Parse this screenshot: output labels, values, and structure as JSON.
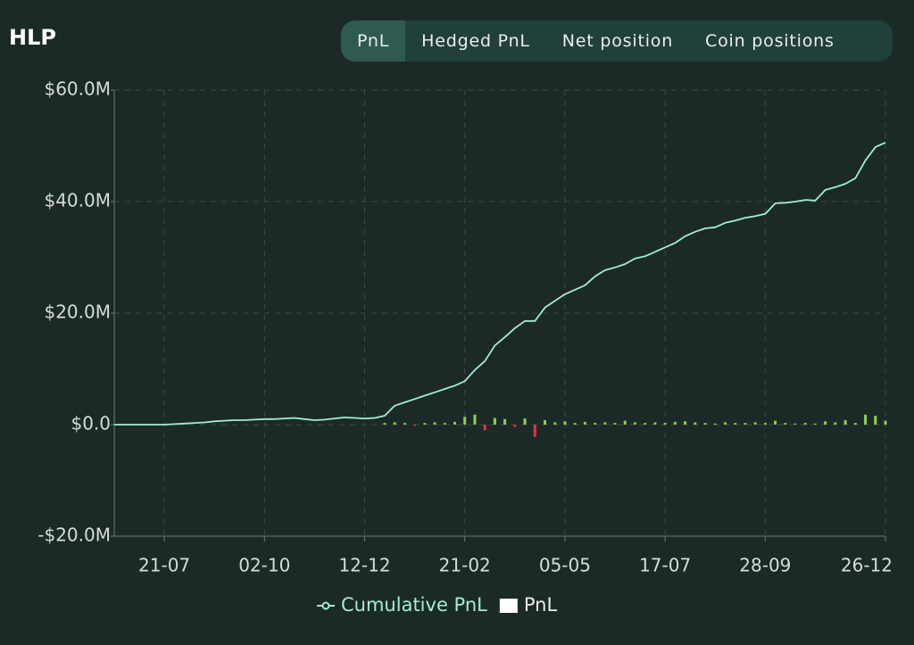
{
  "tabs": [
    "PnL",
    "Hedged PnL",
    "Net position",
    "Coin positions"
  ],
  "active_tab": 0,
  "chart_data": {
    "type": "line",
    "title": "HLP",
    "categories": [
      null,
      null,
      null,
      null,
      null,
      "21-07",
      null,
      null,
      null,
      null,
      null,
      null,
      null,
      null,
      null,
      "02-10",
      null,
      null,
      null,
      null,
      null,
      null,
      null,
      null,
      null,
      "12-12",
      null,
      null,
      null,
      null,
      null,
      null,
      null,
      null,
      null,
      "21-02",
      null,
      null,
      null,
      null,
      null,
      null,
      null,
      null,
      null,
      "05-05",
      null,
      null,
      null,
      null,
      null,
      null,
      null,
      null,
      null,
      "17-07",
      null,
      null,
      null,
      null,
      null,
      null,
      null,
      null,
      null,
      "28-09",
      null,
      null,
      null,
      null,
      null,
      null,
      null,
      null,
      null,
      null,
      null,
      "26-12"
    ],
    "series": [
      {
        "name": "Cumulative PnL",
        "color": "#a3ecd6",
        "type": "line",
        "values": [
          0,
          0,
          0,
          0,
          0,
          0,
          100000,
          200000,
          300000,
          400000,
          600000,
          700000,
          800000,
          800000,
          900000,
          1000000,
          1000000,
          1100000,
          1200000,
          1000000,
          800000,
          900000,
          1100000,
          1300000,
          1200000,
          1100000,
          1200000,
          1600000,
          3400000,
          4000000,
          4600000,
          5200000,
          5800000,
          6400000,
          7000000,
          7800000,
          9800000,
          11400000,
          14200000,
          15700000,
          17300000,
          18600000,
          18600000,
          21000000,
          22200000,
          23400000,
          24200000,
          25000000,
          26600000,
          27700000,
          28200000,
          28800000,
          29800000,
          30200000,
          31000000,
          31800000,
          32600000,
          33800000,
          34600000,
          35200000,
          35400000,
          36200000,
          36600000,
          37100000,
          37400000,
          37800000,
          39700000,
          39800000,
          40000000,
          40300000,
          40200000,
          42100000,
          42600000,
          43200000,
          44200000,
          47400000,
          49800000,
          50600000
        ]
      },
      {
        "name": "PnL",
        "color": "#ffffff",
        "type": "bar",
        "positive_color": "#8fcf4a",
        "negative_color": "#e0344c",
        "values": [
          0,
          0,
          0,
          0,
          0,
          0,
          0,
          0,
          0,
          0,
          0,
          0,
          0,
          0,
          0,
          0,
          0,
          0,
          0,
          0,
          0,
          0,
          0,
          0,
          0,
          0,
          0,
          300000,
          400000,
          300000,
          -200000,
          300000,
          400000,
          300000,
          500000,
          1400000,
          1800000,
          -1000000,
          1200000,
          1000000,
          -400000,
          1100000,
          -2200000,
          800000,
          400000,
          600000,
          300000,
          500000,
          300000,
          400000,
          300000,
          700000,
          400000,
          300000,
          400000,
          300000,
          500000,
          600000,
          400000,
          300000,
          200000,
          400000,
          300000,
          300000,
          400000,
          300000,
          700000,
          300000,
          200000,
          300000,
          200000,
          600000,
          400000,
          800000,
          300000,
          1800000,
          1600000,
          700000
        ]
      }
    ],
    "ylim": [
      -20000000,
      60000000
    ],
    "yticks": [
      {
        "value": -20000000,
        "label": "-$20.0M"
      },
      {
        "value": 0,
        "label": "$0.0"
      },
      {
        "value": 20000000,
        "label": "$20.0M"
      },
      {
        "value": 40000000,
        "label": "$40.0M"
      },
      {
        "value": 60000000,
        "label": "$60.0M"
      }
    ],
    "grid": true,
    "legend": "bottom"
  }
}
